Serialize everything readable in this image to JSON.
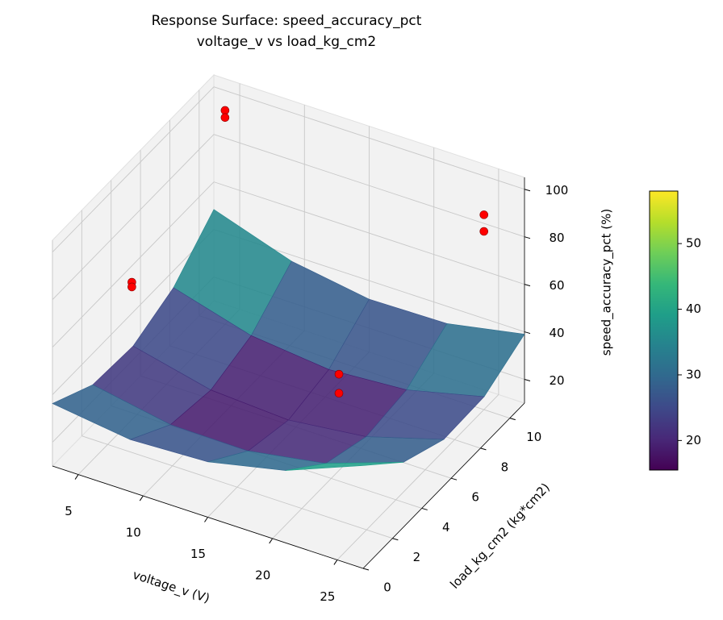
{
  "chart_data": {
    "type": "surface3d",
    "title": "Response Surface: speed_accuracy_pct",
    "subtitle": "voltage_v vs load_kg_cm2",
    "xlabel": "voltage_v (V)",
    "ylabel": "load_kg_cm2 (kg*cm2)",
    "zlabel": "speed_accuracy_pct (%)",
    "xlim": [
      3,
      27
    ],
    "ylim": [
      0,
      11
    ],
    "zlim": [
      10,
      105
    ],
    "xticks": [
      5,
      10,
      15,
      20,
      25
    ],
    "yticks": [
      0,
      2,
      4,
      6,
      8,
      10
    ],
    "zticks": [
      20,
      40,
      60,
      80,
      100
    ],
    "surface": {
      "x": [
        3,
        9,
        15,
        21,
        27
      ],
      "y": [
        0,
        2.75,
        5.5,
        8.25,
        11
      ],
      "z": [
        [
          36.3,
          31.9,
          33.3,
          40.4,
          53.3
        ],
        [
          26.8,
          20.8,
          20.5,
          26.0,
          37.3
        ],
        [
          25.7,
          18.0,
          16.1,
          19.9,
          29.5
        ],
        [
          32.9,
          23.5,
          20.0,
          22.2,
          30.1
        ],
        [
          48.4,
          37.4,
          32.2,
          32.7,
          39.0
        ]
      ]
    },
    "colormap": "viridis",
    "clim": [
      15.5,
      58
    ],
    "cticks": [
      20,
      30,
      40,
      50
    ],
    "series": [
      {
        "color": "#ff0000",
        "x": [
          8,
          8,
          5,
          5,
          25,
          25,
          24,
          24
        ],
        "y": [
          1,
          1,
          10,
          10,
          10,
          10,
          1,
          1
        ],
        "z": [
          90,
          88,
          100,
          97,
          92,
          85,
          80,
          72
        ]
      }
    ]
  }
}
